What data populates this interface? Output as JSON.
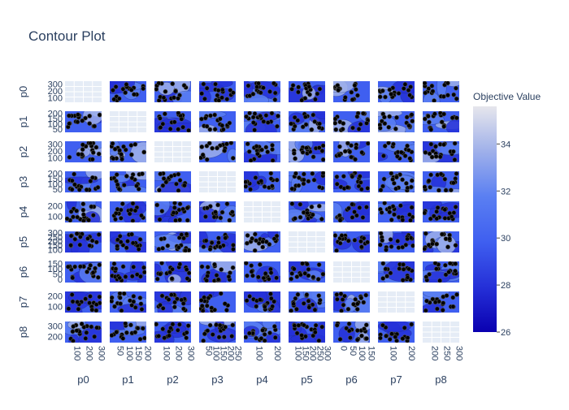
{
  "chart_data": {
    "type": "heatmap",
    "subtype": "contour-matrix",
    "title": "Contour Plot",
    "params": [
      "p0",
      "p1",
      "p2",
      "p3",
      "p4",
      "p5",
      "p6",
      "p7",
      "p8"
    ],
    "x_tick_labels": [
      [
        "100",
        "200",
        "300"
      ],
      [
        "50",
        "100",
        "150",
        "200"
      ],
      [
        "100",
        "200",
        "300"
      ],
      [
        "50",
        "100",
        "150",
        "200",
        "250"
      ],
      [
        "100",
        "200"
      ],
      [
        "100",
        "150",
        "200",
        "250",
        "300"
      ],
      [
        "0",
        "50",
        "100",
        "150"
      ],
      [
        "100",
        "200"
      ],
      [
        "200",
        "250",
        "300"
      ]
    ],
    "y_tick_labels": [
      [
        "100",
        "200",
        "300"
      ],
      [
        "50",
        "100",
        "150",
        "200"
      ],
      [
        "100",
        "200",
        "300"
      ],
      [
        "50",
        "100",
        "150",
        "200"
      ],
      [
        "100",
        "200"
      ],
      [
        "100",
        "150",
        "200",
        "250",
        "300"
      ],
      [
        "0",
        "50",
        "100",
        "150"
      ],
      [
        "100",
        "200"
      ],
      [
        "200",
        "300"
      ]
    ],
    "colorbar": {
      "title": "Objective Value",
      "ticks": [
        26,
        28,
        30,
        32,
        34
      ],
      "range": [
        26,
        35.6
      ],
      "colorscale": [
        "#0a00b0",
        "#2530d8",
        "#3f5ff0",
        "#5a7ff2",
        "#9fb0ea",
        "#e6e6ec"
      ]
    },
    "grid_color": "#e5ecf6",
    "marker_color": "#000000",
    "n_trials": 18
  }
}
